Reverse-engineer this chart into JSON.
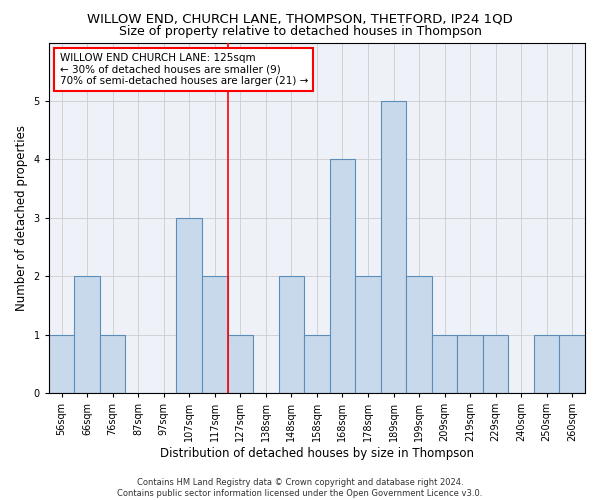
{
  "title": "WILLOW END, CHURCH LANE, THOMPSON, THETFORD, IP24 1QD",
  "subtitle": "Size of property relative to detached houses in Thompson",
  "xlabel": "Distribution of detached houses by size in Thompson",
  "ylabel": "Number of detached properties",
  "footer_line1": "Contains HM Land Registry data © Crown copyright and database right 2024.",
  "footer_line2": "Contains public sector information licensed under the Open Government Licence v3.0.",
  "bar_labels": [
    "56sqm",
    "66sqm",
    "76sqm",
    "87sqm",
    "97sqm",
    "107sqm",
    "117sqm",
    "127sqm",
    "138sqm",
    "148sqm",
    "158sqm",
    "168sqm",
    "178sqm",
    "189sqm",
    "199sqm",
    "209sqm",
    "219sqm",
    "229sqm",
    "240sqm",
    "250sqm",
    "260sqm"
  ],
  "bar_values": [
    1,
    2,
    1,
    0,
    0,
    3,
    2,
    1,
    0,
    2,
    1,
    4,
    2,
    5,
    2,
    1,
    1,
    1,
    0,
    1,
    1
  ],
  "bar_color": "#c9d9ec",
  "bar_edge_color": "#5b8db8",
  "vline_index": 7,
  "vline_color": "red",
  "annotation_box_text": "WILLOW END CHURCH LANE: 125sqm\n← 30% of detached houses are smaller (9)\n70% of semi-detached houses are larger (21) →",
  "ylim": [
    0,
    6
  ],
  "yticks": [
    0,
    1,
    2,
    3,
    4,
    5,
    6
  ],
  "grid_color": "#cccccc",
  "background_color": "#eef2f8",
  "title_fontsize": 9.5,
  "subtitle_fontsize": 9,
  "axis_label_fontsize": 8.5,
  "tick_fontsize": 7,
  "annotation_fontsize": 7.5,
  "footer_fontsize": 6
}
